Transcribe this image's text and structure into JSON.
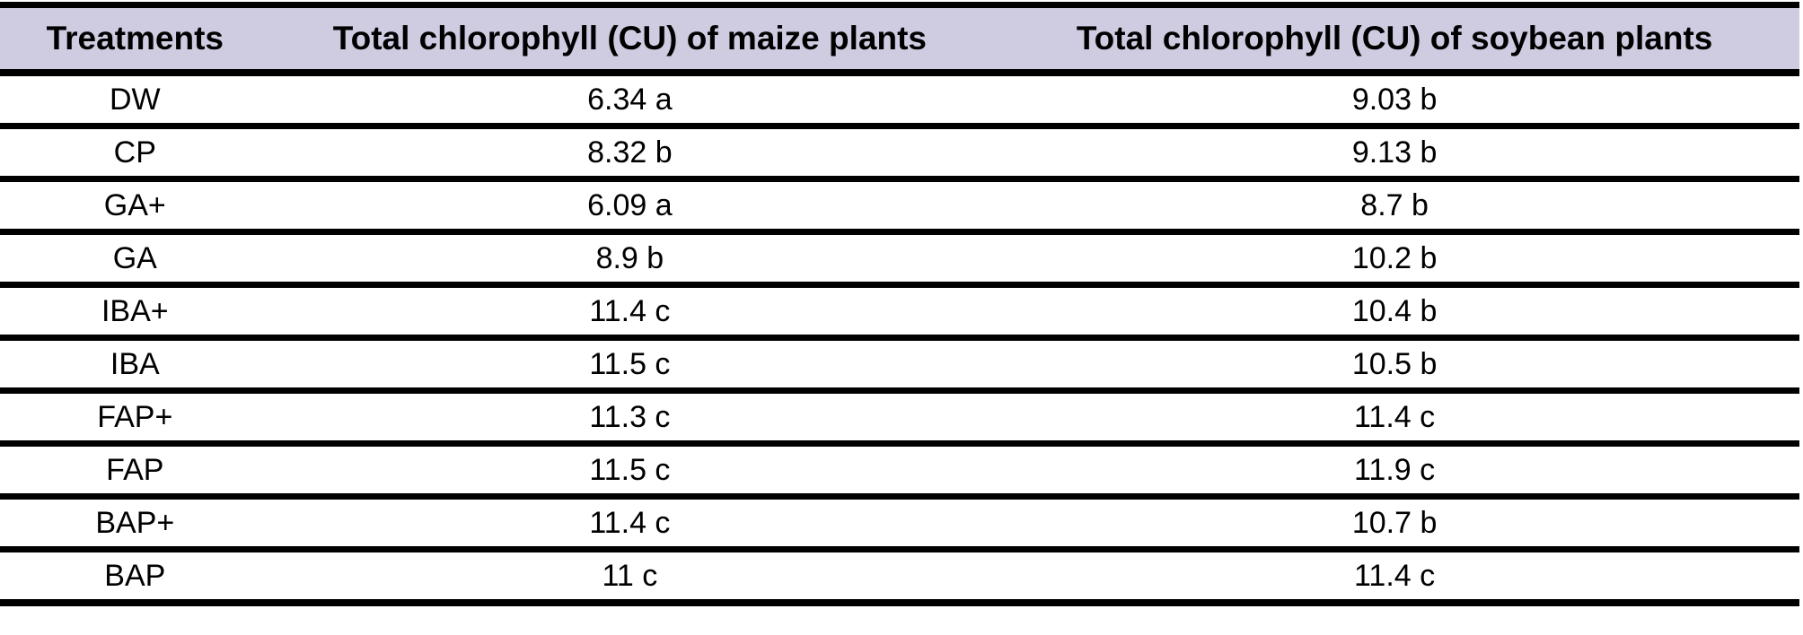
{
  "table": {
    "columns": [
      "Treatments",
      "Total chlorophyll (CU) of maize plants",
      "Total chlorophyll (CU) of soybean plants"
    ],
    "rows": [
      {
        "treatment": "DW",
        "maize": "6.34 a",
        "soybean": "9.03 b"
      },
      {
        "treatment": "CP",
        "maize": "8.32 b",
        "soybean": "9.13 b"
      },
      {
        "treatment": "GA+",
        "maize": "6.09 a",
        "soybean": "8.7 b"
      },
      {
        "treatment": "GA",
        "maize": "8.9 b",
        "soybean": "10.2 b"
      },
      {
        "treatment": "IBA+",
        "maize": "11.4 c",
        "soybean": "10.4 b"
      },
      {
        "treatment": "IBA",
        "maize": "11.5 c",
        "soybean": "10.5 b"
      },
      {
        "treatment": "FAP+",
        "maize": "11.3 c",
        "soybean": "11.4 c"
      },
      {
        "treatment": "FAP",
        "maize": "11.5 c",
        "soybean": "11.9 c"
      },
      {
        "treatment": "BAP+",
        "maize": "11.4 c",
        "soybean": "10.7 b"
      },
      {
        "treatment": "BAP",
        "maize": "11 c",
        "soybean": "11.4 c"
      }
    ]
  },
  "colors": {
    "header_bg": "#cfcce2",
    "border": "#000000",
    "row_bg": "#ffffff",
    "text": "#000000"
  },
  "chart_data": {
    "type": "table",
    "title": "",
    "columns": [
      "Treatments",
      "Total chlorophyll (CU) of maize plants",
      "Total chlorophyll (CU) of soybean plants"
    ],
    "categories": [
      "DW",
      "CP",
      "GA+",
      "GA",
      "IBA+",
      "IBA",
      "FAP+",
      "FAP",
      "BAP+",
      "BAP"
    ],
    "series": [
      {
        "name": "Total chlorophyll (CU) of maize plants",
        "values": [
          6.34,
          8.32,
          6.09,
          8.9,
          11.4,
          11.5,
          11.3,
          11.5,
          11.4,
          11
        ],
        "significance_letters": [
          "a",
          "b",
          "a",
          "b",
          "c",
          "c",
          "c",
          "c",
          "c",
          "c"
        ]
      },
      {
        "name": "Total chlorophyll (CU) of soybean plants",
        "values": [
          9.03,
          9.13,
          8.7,
          10.2,
          10.4,
          10.5,
          11.4,
          11.9,
          10.7,
          11.4
        ],
        "significance_letters": [
          "b",
          "b",
          "b",
          "b",
          "b",
          "b",
          "c",
          "c",
          "b",
          "c"
        ]
      }
    ]
  }
}
